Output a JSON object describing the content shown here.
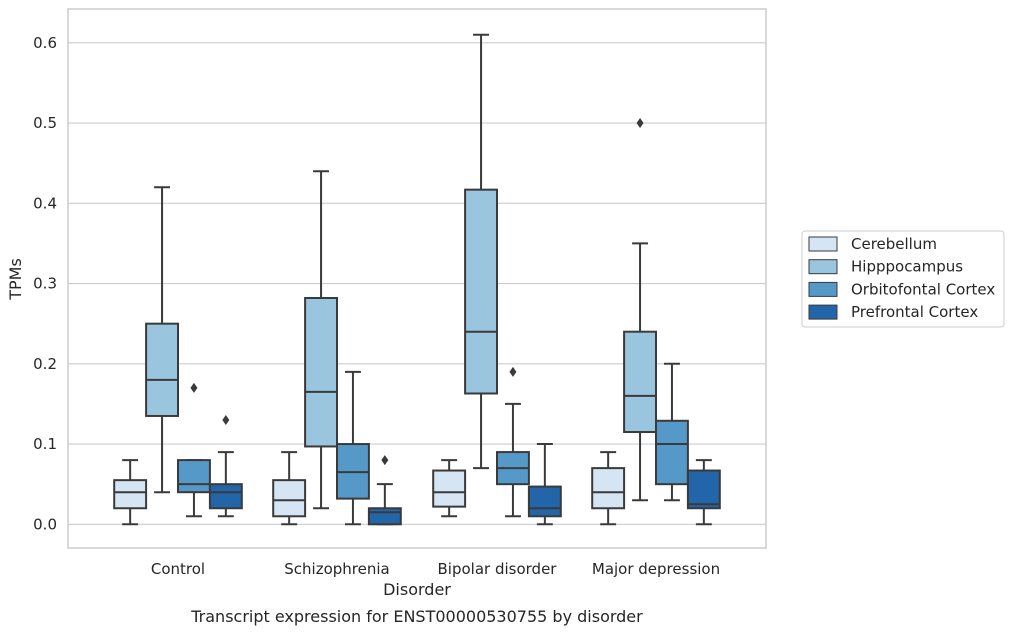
{
  "chart_data": {
    "type": "box",
    "title": "",
    "caption": "Transcript expression for ENST00000530755 by disorder",
    "xlabel": "Disorder",
    "ylabel": "TPMs",
    "ylim": [
      -0.03,
      0.64
    ],
    "yticks": [
      "0.0",
      "0.1",
      "0.2",
      "0.3",
      "0.4",
      "0.5",
      "0.6"
    ],
    "grid": true,
    "legend_position": "right",
    "categories": [
      "Control",
      "Schizophrenia",
      "Bipolar disorder",
      "Major depression"
    ],
    "series": [
      {
        "name": "Cerebellum",
        "color": "#d6e5f4",
        "boxes": [
          {
            "whislo": 0.0,
            "q1": 0.02,
            "med": 0.04,
            "q3": 0.055,
            "whishi": 0.08,
            "fliers": []
          },
          {
            "whislo": 0.0,
            "q1": 0.01,
            "med": 0.03,
            "q3": 0.055,
            "whishi": 0.09,
            "fliers": []
          },
          {
            "whislo": 0.01,
            "q1": 0.022,
            "med": 0.04,
            "q3": 0.067,
            "whishi": 0.08,
            "fliers": []
          },
          {
            "whislo": 0.0,
            "q1": 0.02,
            "med": 0.04,
            "q3": 0.07,
            "whishi": 0.09,
            "fliers": []
          }
        ]
      },
      {
        "name": "Hipppocampus",
        "color": "#9ac5de",
        "boxes": [
          {
            "whislo": 0.04,
            "q1": 0.135,
            "med": 0.18,
            "q3": 0.25,
            "whishi": 0.42,
            "fliers": []
          },
          {
            "whislo": 0.02,
            "q1": 0.097,
            "med": 0.165,
            "q3": 0.282,
            "whishi": 0.44,
            "fliers": []
          },
          {
            "whislo": 0.07,
            "q1": 0.163,
            "med": 0.24,
            "q3": 0.417,
            "whishi": 0.61,
            "fliers": []
          },
          {
            "whislo": 0.03,
            "q1": 0.115,
            "med": 0.16,
            "q3": 0.24,
            "whishi": 0.35,
            "fliers": [
              0.5
            ]
          }
        ]
      },
      {
        "name": "Orbitofontal Cortex",
        "color": "#5599c8",
        "boxes": [
          {
            "whislo": 0.01,
            "q1": 0.04,
            "med": 0.05,
            "q3": 0.08,
            "whishi": 0.08,
            "fliers": [
              0.17
            ]
          },
          {
            "whislo": 0.0,
            "q1": 0.032,
            "med": 0.065,
            "q3": 0.1,
            "whishi": 0.19,
            "fliers": []
          },
          {
            "whislo": 0.01,
            "q1": 0.05,
            "med": 0.07,
            "q3": 0.09,
            "whishi": 0.15,
            "fliers": [
              0.19
            ]
          },
          {
            "whislo": 0.03,
            "q1": 0.05,
            "med": 0.1,
            "q3": 0.129,
            "whishi": 0.2,
            "fliers": []
          }
        ]
      },
      {
        "name": "Prefrontal Cortex",
        "color": "#2265a9",
        "boxes": [
          {
            "whislo": 0.01,
            "q1": 0.02,
            "med": 0.04,
            "q3": 0.05,
            "whishi": 0.09,
            "fliers": [
              0.13
            ]
          },
          {
            "whislo": 0.0,
            "q1": 0.0,
            "med": 0.015,
            "q3": 0.02,
            "whishi": 0.05,
            "fliers": [
              0.08
            ]
          },
          {
            "whislo": 0.0,
            "q1": 0.01,
            "med": 0.02,
            "q3": 0.047,
            "whishi": 0.1,
            "fliers": []
          },
          {
            "whislo": 0.0,
            "q1": 0.02,
            "med": 0.025,
            "q3": 0.067,
            "whishi": 0.08,
            "fliers": []
          }
        ]
      }
    ]
  }
}
